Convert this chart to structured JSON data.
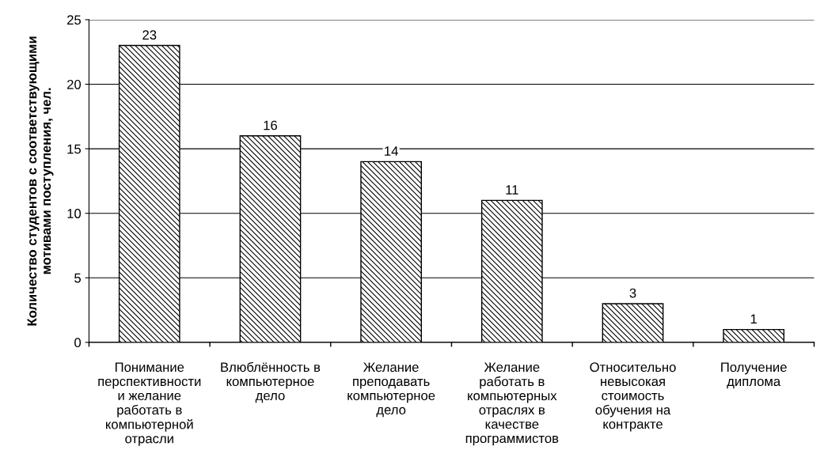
{
  "chart_data": {
    "type": "bar",
    "ylabel": "Количество студентов с соответствующими\nмотивами поступления, чел.",
    "categories": [
      "Понимание\nперспективности\nи желание\nработать в\nкомпьютерной\nотрасли",
      "Влюблённость в\nкомпьютерное\nдело",
      "Желание\nпреподавать\nкомпьютерное\nдело",
      "Желание\nработать в\nкомпьютерных\nотраслях в\nкачестве\nпрограммистов",
      "Относительно\nневысокая\nстоимость\nобучения на\nконтракте",
      "Получение\nдиплома"
    ],
    "values": [
      23,
      16,
      14,
      11,
      3,
      1
    ],
    "color": "#000000",
    "ylim": [
      0,
      25
    ],
    "yticks": [
      0,
      5,
      10,
      15,
      20,
      25
    ],
    "grid": "y",
    "data_labels": true
  }
}
